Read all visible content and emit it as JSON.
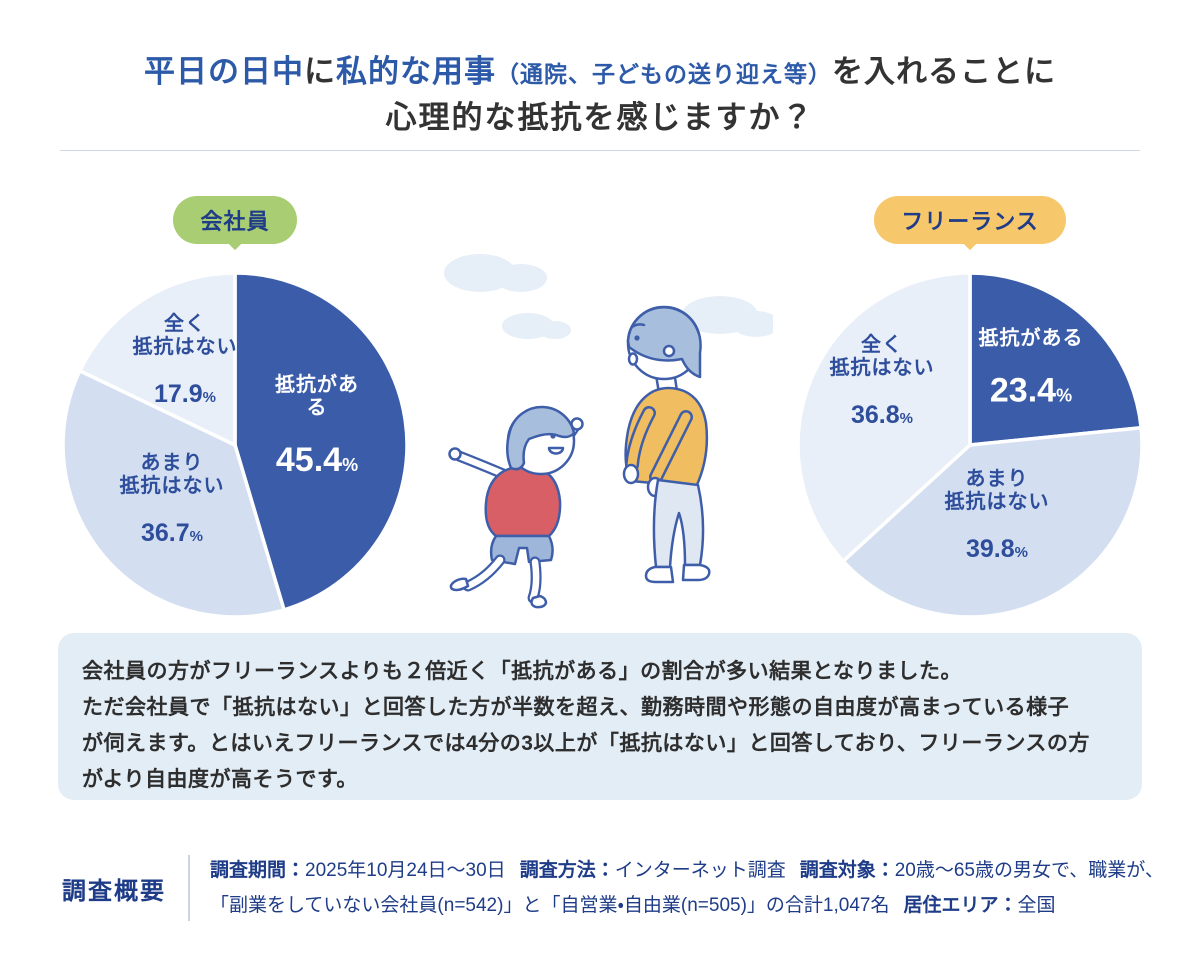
{
  "title": {
    "line1_parts": [
      {
        "text": "平日の日中",
        "style": "blue"
      },
      {
        "text": "に",
        "style": "dark"
      },
      {
        "text": "私的な用事",
        "style": "blue"
      },
      {
        "text": "（通院、子どもの送り迎え等）",
        "style": "blue-small"
      },
      {
        "text": "を入れることに",
        "style": "dark"
      }
    ],
    "line2": "心理的な抵抗を感じますか？"
  },
  "colors": {
    "pie_dark": "#3B5DA9",
    "pie_medium": "#D3DFF1",
    "pie_light": "#E8EFF8",
    "badge_green": "#A9CD72",
    "badge_orange": "#F6C76B",
    "navy_text": "#1E3C87",
    "summary_bg": "#E3EDF6"
  },
  "pies": [
    {
      "badge": {
        "label": "会社員",
        "bg": "#A9CD72"
      },
      "unit": "%",
      "slices": [
        {
          "label": "抵抗がある",
          "display_label": "抵抗がある",
          "value": 45.4,
          "display_value": "45.4",
          "color": "#3B5DA9"
        },
        {
          "label": "あまり抵抗はない",
          "display_label": "あまり\n抵抗はない",
          "value": 36.7,
          "display_value": "36.7",
          "color": "#D3DFF1"
        },
        {
          "label": "全く抵抗はない",
          "display_label": "全く\n抵抗はない",
          "value": 17.9,
          "display_value": "17.9",
          "color": "#E8EFF8"
        }
      ]
    },
    {
      "badge": {
        "label": "フリーランス",
        "bg": "#F6C76B"
      },
      "unit": "%",
      "slices": [
        {
          "label": "抵抗がある",
          "display_label": "抵抗がある",
          "value": 23.4,
          "display_value": "23.4",
          "color": "#3B5DA9"
        },
        {
          "label": "あまり抵抗はない",
          "display_label": "あまり\n抵抗はない",
          "value": 39.8,
          "display_value": "39.8",
          "color": "#D3DFF1"
        },
        {
          "label": "全く抵抗はない",
          "display_label": "全く\n抵抗はない",
          "value": 36.8,
          "display_value": "36.8",
          "color": "#E8EFF8"
        }
      ]
    }
  ],
  "chart_data": [
    {
      "type": "pie",
      "title": "会社員",
      "labels": [
        "抵抗がある",
        "あまり抵抗はない",
        "全く抵抗はない"
      ],
      "values": [
        45.4,
        36.7,
        17.9
      ],
      "unit": "%",
      "start_angle": "top",
      "direction": "clockwise"
    },
    {
      "type": "pie",
      "title": "フリーランス",
      "labels": [
        "抵抗がある",
        "あまり抵抗はない",
        "全く抵抗はない"
      ],
      "values": [
        23.4,
        39.8,
        36.8
      ],
      "unit": "%",
      "start_angle": "top",
      "direction": "clockwise"
    }
  ],
  "summary": {
    "lines": [
      "会社員の方がフリーランスよりも２倍近く「抵抗がある」の割合が多い結果となりました。",
      "ただ会社員で「抵抗はない」と回答した方が半数を超え、勤務時間や形態の自由度が高まっている様子",
      "が伺えます。とはいえフリーランスでは4分の3以上が「抵抗はない」と回答しており、フリーランスの方",
      "がより自由度が高そうです。"
    ]
  },
  "survey": {
    "heading": "調査概要",
    "line1": [
      {
        "label": "調査期間：",
        "value": "2025年10月24日～30日"
      },
      {
        "label": "調査方法：",
        "value": "インターネット調査"
      },
      {
        "label": "調査対象：",
        "value": "20歳～65歳の男女で、職業が、"
      }
    ],
    "line2": [
      {
        "label": "",
        "value": "「副業をしていない会社員(n=542)」と「自営業・自由業(n=505)」の合計1,047名"
      },
      {
        "label": "居住エリア：",
        "value": "全国"
      }
    ]
  }
}
